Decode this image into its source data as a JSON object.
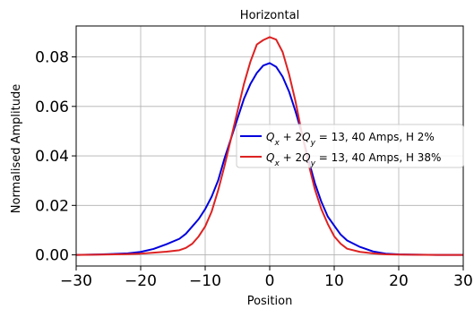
{
  "chart_data": {
    "type": "line",
    "title": "Horizontal",
    "xlabel": "Position",
    "ylabel": "Normalised Amplitude",
    "xlim": [
      -30,
      30
    ],
    "ylim": [
      -0.0045,
      0.0925
    ],
    "xticks": [
      -30,
      -20,
      -10,
      0,
      10,
      20,
      30
    ],
    "xtick_labels": [
      "−30",
      "−20",
      "−10",
      "0",
      "10",
      "20",
      "30"
    ],
    "yticks": [
      0.0,
      0.02,
      0.04,
      0.06,
      0.08
    ],
    "ytick_labels": [
      "0.00",
      "0.02",
      "0.04",
      "0.06",
      "0.08"
    ],
    "grid": true,
    "legend_position": "right",
    "series": [
      {
        "name": "Q_x + 2Q_y = 13, 40 Amps, H 2%",
        "color": "#0000dd",
        "x": [
          -30,
          -26,
          -22,
          -20,
          -18,
          -16,
          -14,
          -13,
          -12,
          -11,
          -10,
          -9,
          -8,
          -7,
          -6,
          -5,
          -4,
          -3,
          -2,
          -1,
          0,
          1,
          2,
          3,
          4,
          5,
          6,
          7,
          8,
          9,
          10,
          11,
          12,
          14,
          16,
          18,
          20,
          22,
          26,
          30
        ],
        "y": [
          0.0,
          0.0002,
          0.0006,
          0.0012,
          0.0024,
          0.0043,
          0.0065,
          0.0085,
          0.0115,
          0.0145,
          0.0185,
          0.0235,
          0.03,
          0.039,
          0.047,
          0.055,
          0.063,
          0.069,
          0.0735,
          0.0765,
          0.0775,
          0.076,
          0.072,
          0.066,
          0.058,
          0.049,
          0.0385,
          0.029,
          0.0215,
          0.0155,
          0.0118,
          0.0082,
          0.0058,
          0.0032,
          0.0014,
          0.0005,
          0.0002,
          0.0001,
          0.0,
          0.0
        ]
      },
      {
        "name": "Q_x + 2Q_y = 13, 40 Amps, H 38%",
        "color": "#dd2222",
        "x": [
          -30,
          -26,
          -22,
          -20,
          -18,
          -16,
          -14,
          -13,
          -12,
          -11,
          -10,
          -9,
          -8,
          -7,
          -6,
          -5,
          -4,
          -3,
          -2,
          -1,
          0,
          0.5,
          1,
          2,
          3,
          4,
          5,
          6,
          7,
          8,
          9,
          10,
          11,
          12,
          14,
          16,
          18,
          20,
          26,
          30
        ],
        "y": [
          0.0,
          0.0001,
          0.0003,
          0.0005,
          0.0009,
          0.0013,
          0.0019,
          0.0028,
          0.0045,
          0.0075,
          0.0115,
          0.0175,
          0.026,
          0.036,
          0.047,
          0.058,
          0.069,
          0.078,
          0.085,
          0.0868,
          0.088,
          0.0875,
          0.087,
          0.082,
          0.073,
          0.062,
          0.049,
          0.037,
          0.0265,
          0.0185,
          0.0125,
          0.0075,
          0.0045,
          0.0025,
          0.0012,
          0.0006,
          0.0002,
          0.0001,
          0.0,
          0.0
        ]
      }
    ]
  }
}
